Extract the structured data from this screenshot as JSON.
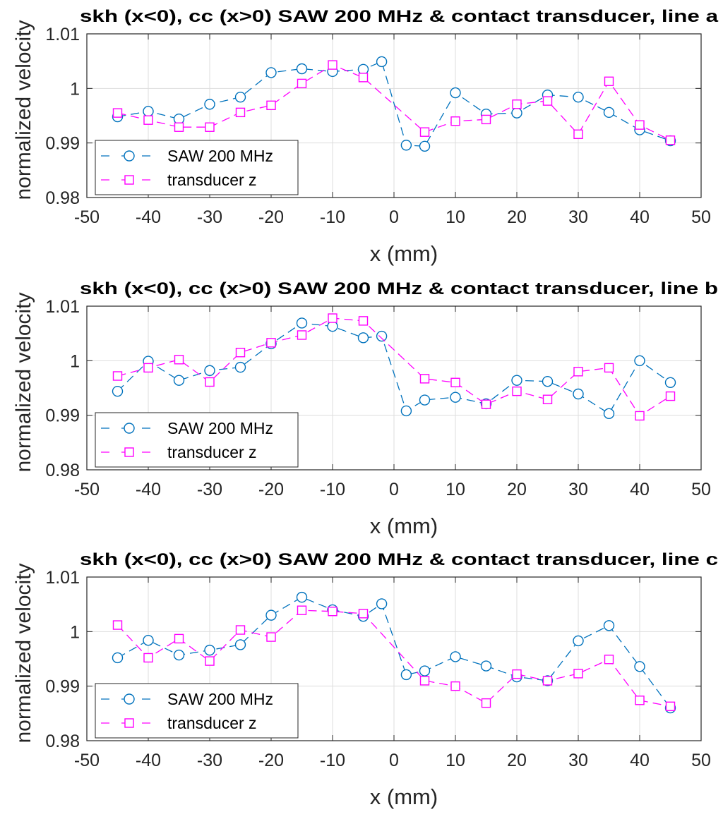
{
  "figure": {
    "panels": [
      {
        "title": "skh (x<0), cc (x>0) SAW 200 MHz & contact transducer, line a",
        "xlabel": "x (mm)",
        "ylabel": "normalized velocity"
      },
      {
        "title": "skh (x<0), cc (x>0) SAW 200 MHz & contact transducer, line b",
        "xlabel": "x (mm)",
        "ylabel": "normalized velocity"
      },
      {
        "title": "skh (x<0), cc (x>0) SAW 200 MHz & contact transducer, line c",
        "xlabel": "x (mm)",
        "ylabel": "normalized velocity"
      }
    ],
    "legend": [
      "SAW 200 MHz",
      "transducer z"
    ],
    "xticks": [
      "-50",
      "-40",
      "-30",
      "-20",
      "-10",
      "0",
      "10",
      "20",
      "30",
      "40",
      "50"
    ],
    "yticks": [
      "0.98",
      "0.99",
      "1",
      "1.01"
    ]
  },
  "colors": {
    "saw": "#0072BD",
    "transducer": "#FF00FF",
    "grid": "#dddddd",
    "axis": "#262626"
  },
  "chart_data": [
    {
      "type": "line",
      "title": "skh (x<0), cc (x>0) SAW 200 MHz & contact transducer, line a",
      "xlabel": "x (mm)",
      "ylabel": "normalized velocity",
      "xlim": [
        -50,
        50
      ],
      "ylim": [
        0.98,
        1.01
      ],
      "grid": true,
      "legend_position": "bottom-left",
      "series": [
        {
          "name": "SAW 200 MHz",
          "marker": "circle",
          "line": "dashed",
          "x": [
            -45,
            -40,
            -35,
            -30,
            -25,
            -20,
            -15,
            -10,
            -5,
            -2,
            2,
            5,
            10,
            15,
            20,
            25,
            30,
            35,
            40,
            45
          ],
          "y": [
            0.9948,
            0.9958,
            0.9944,
            0.9971,
            0.9984,
            1.0029,
            1.0036,
            1.0031,
            1.0035,
            1.0049,
            0.9896,
            0.9894,
            0.9992,
            0.9953,
            0.9955,
            0.9988,
            0.9984,
            0.9956,
            0.9924,
            0.9904
          ]
        },
        {
          "name": "transducer z",
          "marker": "square",
          "line": "dashed",
          "x": [
            -45,
            -40,
            -35,
            -30,
            -25,
            -20,
            -15,
            -10,
            -5,
            5,
            10,
            15,
            20,
            25,
            30,
            35,
            40,
            45
          ],
          "y": [
            0.9955,
            0.9942,
            0.9929,
            0.9929,
            0.9956,
            0.9969,
            1.0009,
            1.0043,
            1.002,
            0.992,
            0.994,
            0.9943,
            0.9971,
            0.9977,
            0.9916,
            1.0013,
            0.9933,
            0.9905
          ]
        }
      ]
    },
    {
      "type": "line",
      "title": "skh (x<0), cc (x>0) SAW 200 MHz & contact transducer, line b",
      "xlabel": "x (mm)",
      "ylabel": "normalized velocity",
      "xlim": [
        -50,
        50
      ],
      "ylim": [
        0.98,
        1.01
      ],
      "grid": true,
      "legend_position": "bottom-left",
      "series": [
        {
          "name": "SAW 200 MHz",
          "marker": "circle",
          "line": "dashed",
          "x": [
            -45,
            -40,
            -35,
            -30,
            -25,
            -20,
            -15,
            -10,
            -5,
            -2,
            2,
            5,
            10,
            15,
            20,
            25,
            30,
            35,
            40,
            45
          ],
          "y": [
            0.9944,
            0.9999,
            0.9964,
            0.9982,
            0.9988,
            1.0031,
            1.0069,
            1.0063,
            1.0042,
            1.0045,
            0.9908,
            0.9928,
            0.9933,
            0.9921,
            0.9964,
            0.9962,
            0.9939,
            0.9903,
            1.0,
            0.996
          ]
        },
        {
          "name": "transducer z",
          "marker": "square",
          "line": "dashed",
          "x": [
            -45,
            -40,
            -35,
            -30,
            -25,
            -20,
            -15,
            -10,
            -5,
            5,
            10,
            15,
            20,
            25,
            30,
            35,
            40,
            45
          ],
          "y": [
            0.9972,
            0.9987,
            1.0002,
            0.9961,
            1.0015,
            1.0033,
            1.0047,
            1.0078,
            1.0073,
            0.9967,
            0.996,
            0.992,
            0.9944,
            0.9929,
            0.998,
            0.9987,
            0.9899,
            0.9935
          ]
        }
      ]
    },
    {
      "type": "line",
      "title": "skh (x<0), cc (x>0) SAW 200 MHz & contact transducer, line c",
      "xlabel": "x (mm)",
      "ylabel": "normalized velocity",
      "xlim": [
        -50,
        50
      ],
      "ylim": [
        0.98,
        1.01
      ],
      "grid": true,
      "legend_position": "bottom-left",
      "series": [
        {
          "name": "SAW 200 MHz",
          "marker": "circle",
          "line": "dashed",
          "x": [
            -45,
            -40,
            -35,
            -30,
            -25,
            -20,
            -15,
            -10,
            -5,
            -2,
            2,
            5,
            10,
            15,
            20,
            25,
            30,
            35,
            40,
            45
          ],
          "y": [
            0.9952,
            0.9984,
            0.9957,
            0.9966,
            0.9976,
            1.003,
            1.0063,
            1.004,
            1.0028,
            1.0051,
            0.9921,
            0.9928,
            0.9954,
            0.9937,
            0.9917,
            0.991,
            0.9983,
            1.0011,
            0.9936,
            0.986
          ]
        },
        {
          "name": "transducer z",
          "marker": "square",
          "line": "dashed",
          "x": [
            -45,
            -40,
            -35,
            -30,
            -25,
            -20,
            -15,
            -10,
            -5,
            5,
            10,
            15,
            20,
            25,
            30,
            35,
            40,
            45
          ],
          "y": [
            1.0012,
            0.9952,
            0.9987,
            0.9946,
            1.0003,
            0.999,
            1.0039,
            1.0037,
            1.0033,
            0.991,
            0.99,
            0.9869,
            0.9922,
            0.991,
            0.9923,
            0.9949,
            0.9874,
            0.9863
          ]
        }
      ]
    }
  ]
}
